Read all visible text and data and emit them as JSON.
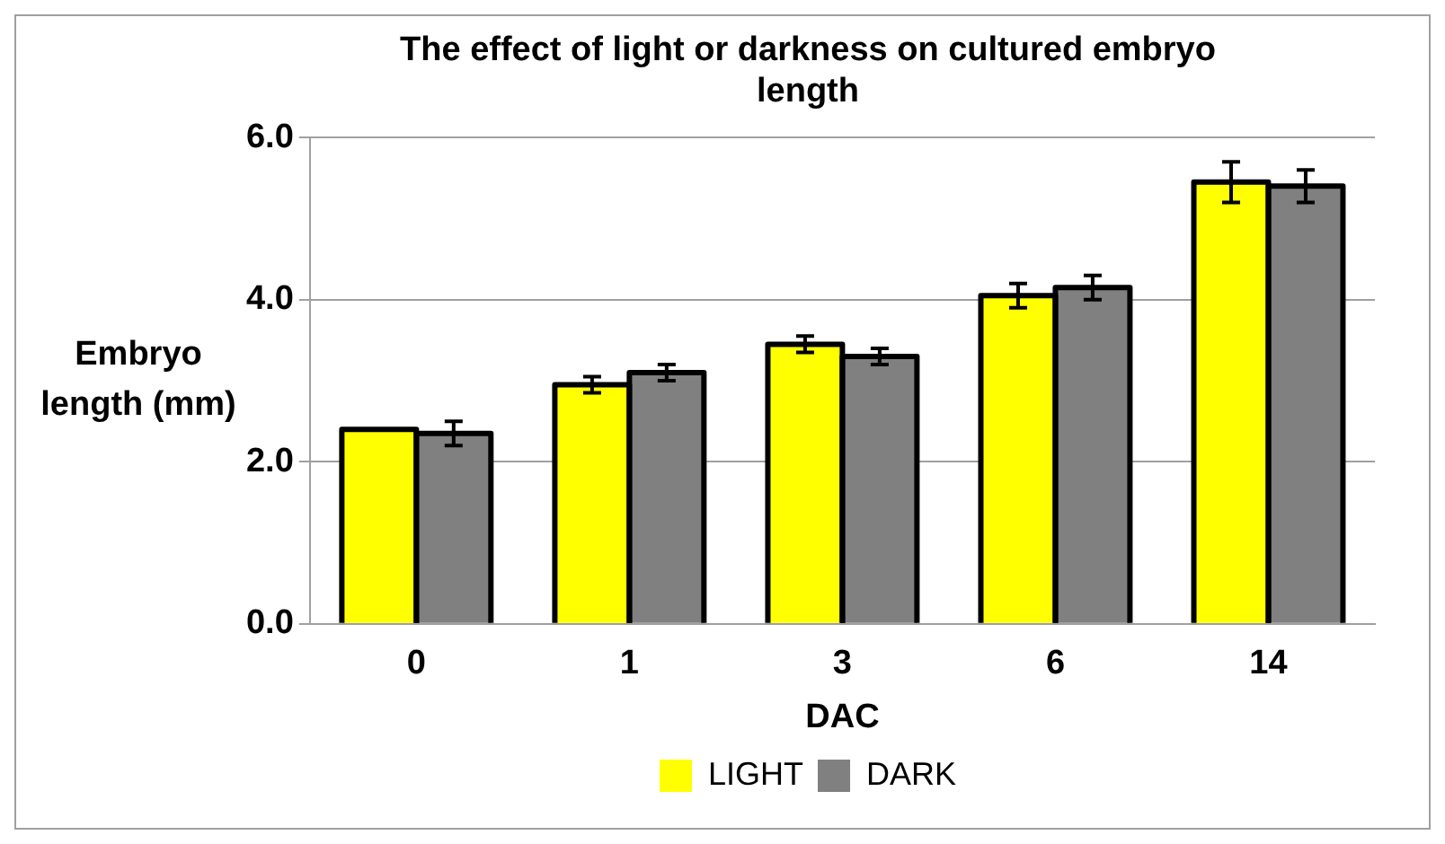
{
  "chart_data": {
    "type": "bar",
    "title": "The effect of light or darkness on cultured embryo length",
    "xlabel": "DAC",
    "ylabel": "Embryo length (mm)",
    "categories": [
      "0",
      "1",
      "3",
      "6",
      "14"
    ],
    "series": [
      {
        "name": "LIGHT",
        "color": "#ffff00",
        "values": [
          2.4,
          2.95,
          3.45,
          4.05,
          5.45
        ],
        "errors": [
          null,
          0.1,
          0.1,
          0.15,
          0.25
        ]
      },
      {
        "name": "DARK",
        "color": "#808080",
        "values": [
          2.35,
          3.1,
          3.3,
          4.15,
          5.4
        ],
        "errors": [
          0.15,
          0.1,
          0.1,
          0.15,
          0.2
        ]
      }
    ],
    "ylim": [
      0,
      6
    ],
    "yticks": [
      {
        "value": 0,
        "label": "0.0"
      },
      {
        "value": 2,
        "label": "2.0"
      },
      {
        "value": 4,
        "label": "4.0"
      },
      {
        "value": 6,
        "label": "6.0"
      }
    ],
    "grid": "y",
    "legend": "bottom"
  }
}
